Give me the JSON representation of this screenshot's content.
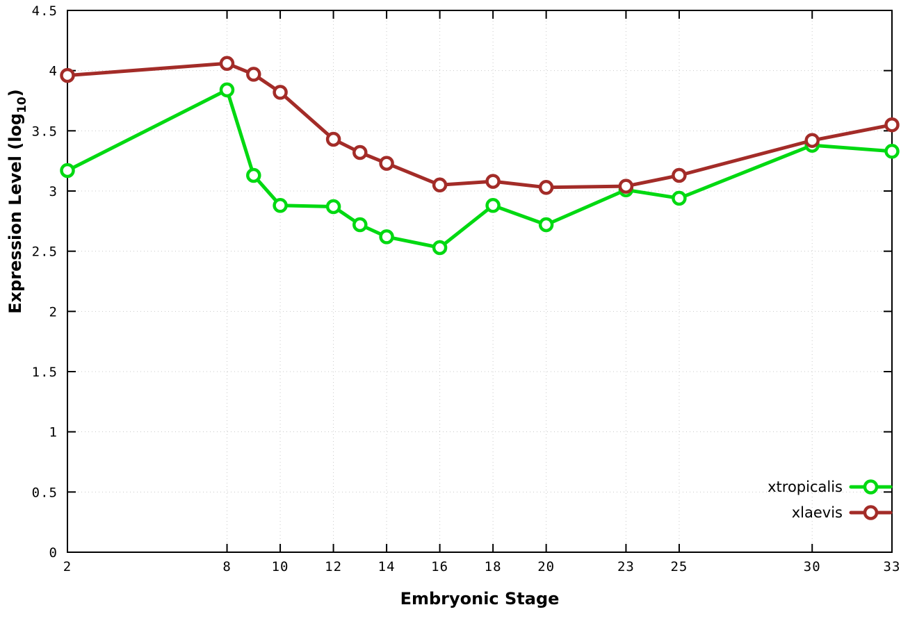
{
  "chart_data": {
    "type": "line",
    "title": "",
    "xlabel": "Embryonic Stage",
    "ylabel_main": "Expression Level (log",
    "ylabel_sub": "10",
    "ylabel_end": ")",
    "xlim": [
      2,
      33
    ],
    "ylim": [
      0,
      4.5
    ],
    "grid": true,
    "legend_position": "bottom-right",
    "x_ticks": [
      2,
      8,
      10,
      12,
      14,
      16,
      18,
      20,
      23,
      25,
      30,
      33
    ],
    "x_tick_labels": [
      "2",
      "8",
      "10",
      "12",
      "14",
      "16",
      "18",
      "20",
      "23",
      "25",
      "30",
      "33"
    ],
    "y_ticks": [
      0,
      0.5,
      1,
      1.5,
      2,
      2.5,
      3,
      3.5,
      4,
      4.5
    ],
    "y_tick_labels": [
      "0",
      "0.5",
      "1",
      "1.5",
      "2",
      "2.5",
      "3",
      "3.5",
      "4",
      "4.5"
    ],
    "x": [
      2,
      8,
      9,
      10,
      12,
      13,
      14,
      16,
      18,
      20,
      23,
      25,
      30,
      33
    ],
    "series": [
      {
        "name": "xtropicalis",
        "color": "#00d911",
        "values": [
          3.17,
          3.84,
          3.13,
          2.88,
          2.87,
          2.72,
          2.62,
          2.53,
          2.88,
          2.72,
          3.01,
          2.94,
          3.38,
          3.33
        ]
      },
      {
        "name": "xlaevis",
        "color": "#a32c28",
        "values": [
          3.96,
          4.06,
          3.97,
          3.82,
          3.43,
          3.32,
          3.23,
          3.05,
          3.08,
          3.03,
          3.04,
          3.13,
          3.42,
          3.55
        ]
      }
    ],
    "colors": {
      "axis": "#000000",
      "grid": "#c8c8c8",
      "tick_text": "#000000",
      "marker_fill": "#ffffff"
    }
  }
}
